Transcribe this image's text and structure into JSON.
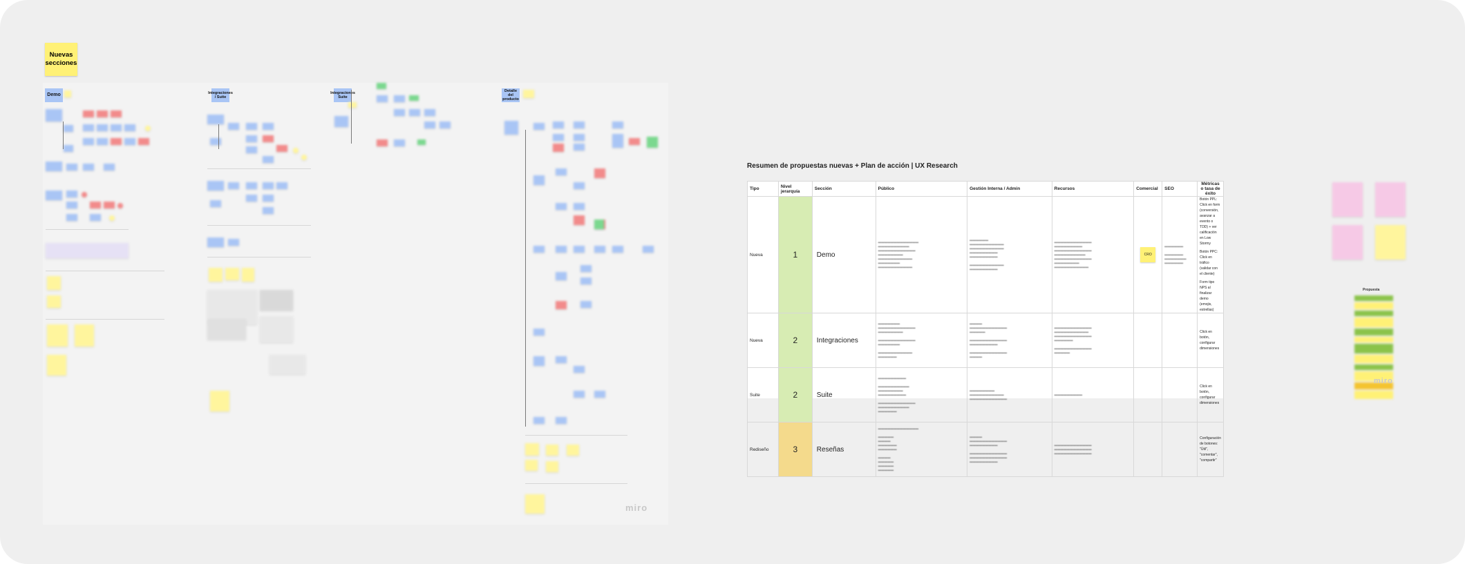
{
  "board": {
    "title_note": "Nuevas secciones",
    "section_labels": [
      "Demo",
      "Integraciones / Suite",
      "Integraciones Suite",
      "Detalle del producto"
    ],
    "watermark": "miro"
  },
  "summary": {
    "title": "Resumen de propuestas nuevas + Plan de acción | UX Research",
    "headers": [
      "Tipo",
      "Nivel jerarquía",
      "Sección",
      "Público",
      "Gestión Interna / Admin",
      "Recursos",
      "Comercial",
      "SEO",
      "Métricas o tasa de éxito"
    ],
    "rows": [
      {
        "tipo": "Nueva",
        "nivel": "1",
        "seccion": "Demo",
        "comercial": "CRO",
        "metrica_lines": [
          "Botón PPL: Click en form (conversión, avanzar a evento o TDD) + ver calificación en Low Stormy",
          "Botón PPC: Click en tráfico (validar con el cliente)",
          "Form tipo NPS al finalizar demo (emojis, estrellas)"
        ]
      },
      {
        "tipo": "Nueva",
        "nivel": "2",
        "seccion": "Integraciones",
        "comercial": "",
        "metrica_lines": [
          "Click en botón, configurar dimensiones"
        ]
      },
      {
        "tipo": "Suite",
        "nivel": "2",
        "seccion": "Suite",
        "comercial": "",
        "metrica_lines": [
          "Click en botón, configurar dimensiones"
        ]
      },
      {
        "tipo": "Rediseño",
        "nivel": "3",
        "seccion": "Reseñas",
        "comercial": "",
        "metrica_lines": [
          "Configuración de botones: \"Útil\", \"comentar\", \"compartir\""
        ]
      }
    ],
    "level_colors": [
      "#d7ecb3",
      "#d7ecb3",
      "#d7ecb3",
      "#f4da8c"
    ]
  },
  "propuesta_label": "Propuesta",
  "colors": {
    "accent_yellow": "#fff176",
    "sticky_blue": "#a9c5f5",
    "sticky_red": "#f28b8b",
    "sticky_green": "#7bd88f"
  }
}
